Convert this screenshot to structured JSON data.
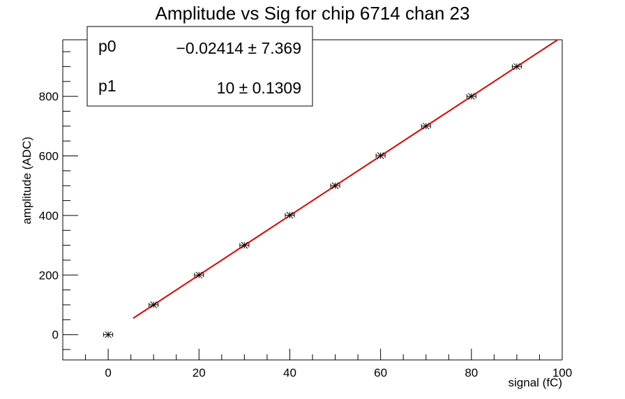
{
  "chart_data": {
    "type": "scatter",
    "title": "Amplitude vs Sig for chip 6714 chan 23",
    "xlabel": "signal (fC)",
    "ylabel": "amplitude (ADC)",
    "xlim": [
      -10,
      100
    ],
    "ylim": [
      -85,
      990
    ],
    "x_ticks": [
      0,
      20,
      40,
      60,
      80,
      100
    ],
    "y_ticks": [
      0,
      200,
      400,
      600,
      800
    ],
    "series": [
      {
        "points": [
          {
            "x": 0,
            "y": 0
          },
          {
            "x": 10,
            "y": 100
          },
          {
            "x": 20,
            "y": 200
          },
          {
            "x": 30,
            "y": 300
          },
          {
            "x": 40,
            "y": 401
          },
          {
            "x": 50,
            "y": 500
          },
          {
            "x": 60,
            "y": 601
          },
          {
            "x": 70,
            "y": 700
          },
          {
            "x": 80,
            "y": 800
          },
          {
            "x": 90,
            "y": 900
          }
        ],
        "x_error": 1,
        "color": "#000000"
      }
    ],
    "fit": {
      "color": "#e00000",
      "x_range": [
        5.5,
        100
      ],
      "p0": -0.02414,
      "p1": 10
    },
    "stats": [
      {
        "name": "p0",
        "value": "−0.02414 ± 7.369"
      },
      {
        "name": "p1",
        "value": "10 ± 0.1309"
      }
    ],
    "grid": false,
    "legend": "top-left"
  }
}
